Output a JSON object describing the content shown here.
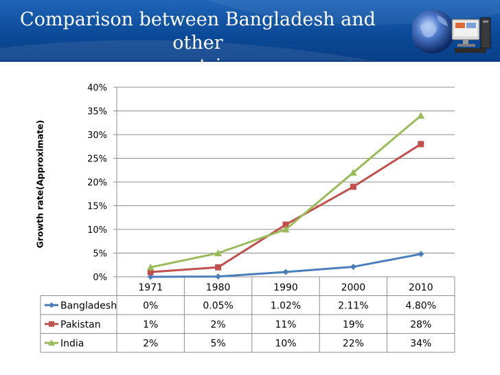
{
  "slide": {
    "title_lines": [
      "Comparison between Bangladesh and other",
      "countries"
    ]
  },
  "chart_data": {
    "type": "line",
    "categories": [
      "1971",
      "1980",
      "1990",
      "2000",
      "2010"
    ],
    "ylabel": "Growth rate(Approximate)",
    "ylim": [
      0,
      40
    ],
    "yticks": [
      0,
      5,
      10,
      15,
      20,
      25,
      30,
      35,
      40
    ],
    "ytick_labels": [
      "0%",
      "5%",
      "10%",
      "15%",
      "20%",
      "25%",
      "30%",
      "35%",
      "40%"
    ],
    "grid": true,
    "data_table": true,
    "series": [
      {
        "name": "Bangladesh",
        "color": "#4a7ebb",
        "marker": "diamond",
        "values": [
          0,
          0.05,
          1.02,
          2.11,
          4.8
        ],
        "table_labels": [
          "0%",
          "0.05%",
          "1.02%",
          "2.11%",
          "4.80%"
        ]
      },
      {
        "name": "Pakistan",
        "color": "#c0504d",
        "marker": "square",
        "values": [
          1,
          2,
          11,
          19,
          28
        ],
        "table_labels": [
          "1%",
          "2%",
          "11%",
          "19%",
          "28%"
        ]
      },
      {
        "name": "India",
        "color": "#9bbb59",
        "marker": "triangle",
        "values": [
          2,
          5,
          10,
          22,
          34
        ],
        "table_labels": [
          "2%",
          "5%",
          "10%",
          "22%",
          "34%"
        ]
      }
    ]
  }
}
